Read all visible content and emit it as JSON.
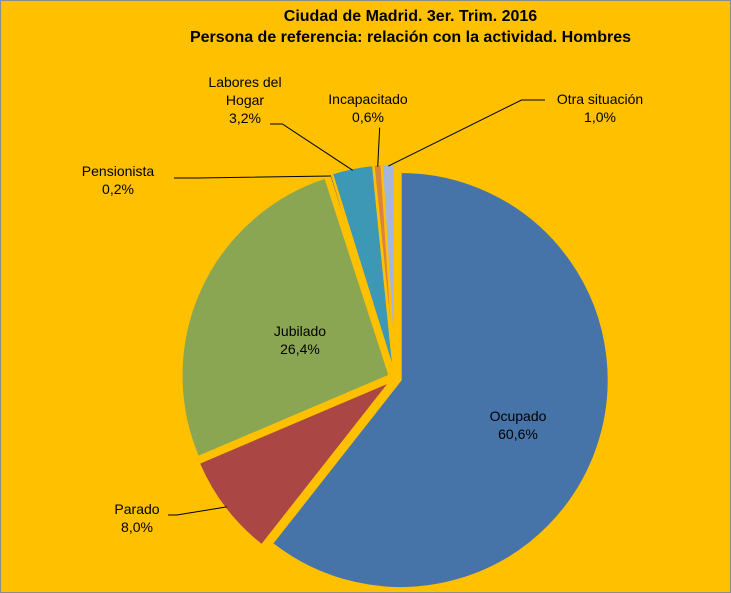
{
  "chart_data": {
    "type": "pie",
    "title": "Ciudad de Madrid. 3er. Trim. 2016",
    "subtitle": "Persona de referencia: relación con la actividad. Hombres",
    "categories": [
      "Ocupado",
      "Parado",
      "Jubilado",
      "Pensionista",
      "Labores del Hogar",
      "Incapacitado",
      "Otra situación"
    ],
    "values": [
      60.6,
      8.0,
      26.4,
      0.2,
      3.2,
      0.6,
      1.0
    ],
    "value_labels": [
      "60,6%",
      "8,0%",
      "26,4%",
      "0,2%",
      "3,2%",
      "0,6%",
      "1,0%"
    ],
    "colors": [
      "#4673a8",
      "#aa4643",
      "#8ba653",
      "#71588f",
      "#3d98b6",
      "#db843d",
      "#a4b7db"
    ]
  }
}
